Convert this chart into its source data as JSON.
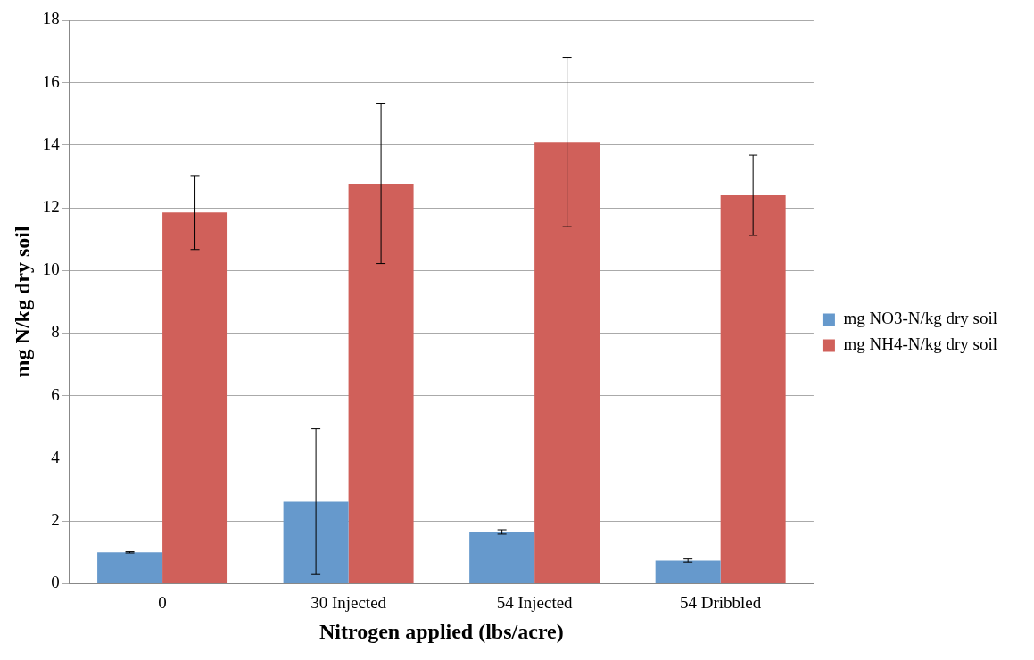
{
  "chart_data": {
    "type": "bar",
    "xlabel": "Nitrogen applied (lbs/acre)",
    "ylabel": "mg N/kg dry soil",
    "categories": [
      "0",
      "30 Injected",
      "54 Injected",
      "54 Dribbled"
    ],
    "series": [
      {
        "name": "mg NO3-N/kg dry soil",
        "color": "#6699cc",
        "values": [
          1.0,
          2.62,
          1.65,
          0.74
        ],
        "errors": [
          0.02,
          2.33,
          0.07,
          0.05
        ]
      },
      {
        "name": "mg NH4-N/kg dry soil",
        "color": "#d0605a",
        "values": [
          11.85,
          12.77,
          14.1,
          12.4
        ],
        "errors": [
          1.18,
          2.55,
          2.7,
          1.28
        ]
      }
    ],
    "ylim": [
      0,
      18
    ],
    "yticks": [
      0,
      2,
      4,
      6,
      8,
      10,
      12,
      14,
      16,
      18
    ],
    "grid": "y",
    "legend": "right"
  }
}
